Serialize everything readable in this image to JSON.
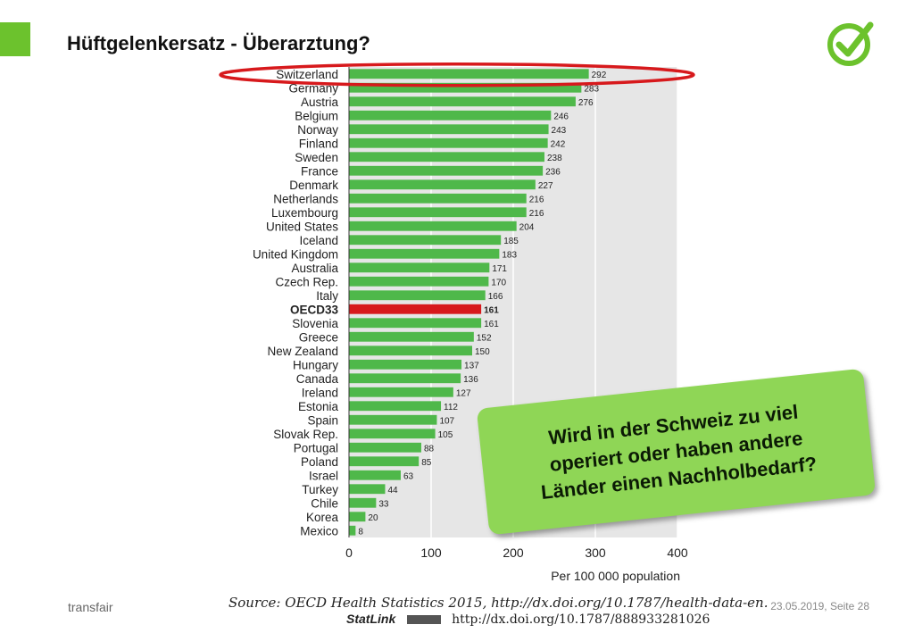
{
  "header": {
    "title": "Hüftgelenkersatz - Überarztung?",
    "accent_color": "#6cc22d",
    "check_icon": "checkmark-circle-icon"
  },
  "chart_data": {
    "type": "bar",
    "orientation": "horizontal",
    "categories": [
      "Switzerland",
      "Germany",
      "Austria",
      "Belgium",
      "Norway",
      "Finland",
      "Sweden",
      "France",
      "Denmark",
      "Netherlands",
      "Luxembourg",
      "United States",
      "Iceland",
      "United Kingdom",
      "Australia",
      "Czech Rep.",
      "Italy",
      "OECD33",
      "Slovenia",
      "Greece",
      "New Zealand",
      "Hungary",
      "Canada",
      "Ireland",
      "Estonia",
      "Spain",
      "Slovak Rep.",
      "Portugal",
      "Poland",
      "Israel",
      "Turkey",
      "Chile",
      "Korea",
      "Mexico"
    ],
    "values": [
      292,
      283,
      276,
      246,
      243,
      242,
      238,
      236,
      227,
      216,
      216,
      204,
      185,
      183,
      171,
      170,
      166,
      161,
      161,
      152,
      150,
      137,
      136,
      127,
      112,
      107,
      105,
      88,
      85,
      63,
      44,
      33,
      20,
      8
    ],
    "highlight": "OECD33",
    "bar_color": "#4fb84a",
    "highlight_color": "#d7191c",
    "xlabel": "Per 100 000 population",
    "xlim": [
      0,
      400
    ],
    "xticks": [
      0,
      100,
      200,
      300,
      400
    ],
    "grid": true,
    "circled": "Switzerland",
    "circle_color": "#d7191c"
  },
  "callout": {
    "lines": [
      "Wird in der Schweiz zu viel",
      "operiert oder haben andere",
      "Länder einen Nachholbedarf?"
    ],
    "color": "#8fd656"
  },
  "footer": {
    "left": "transfair",
    "right": "23.05.2019, Seite 28",
    "source_label": "Source:",
    "source_text": "OECD Health Statistics 2015, http://dx.doi.org/10.1787/health-data-en.",
    "statlink_label": "StatLink",
    "statlink_url": "http://dx.doi.org/10.1787/888933281026"
  }
}
